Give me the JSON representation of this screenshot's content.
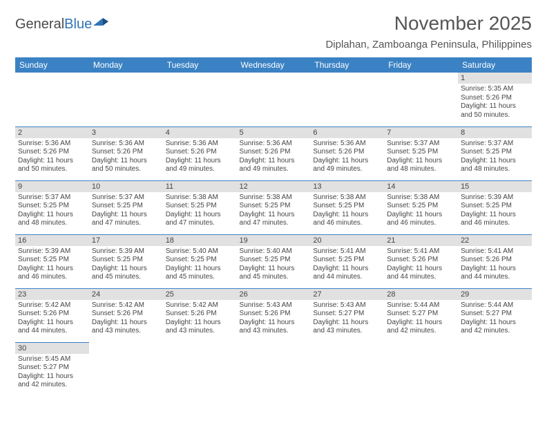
{
  "logo": {
    "text_dark": "General",
    "text_blue": "Blue"
  },
  "title": "November 2025",
  "location": "Diplahan, Zamboanga Peninsula, Philippines",
  "colors": {
    "header_bg": "#3b82c4",
    "header_text": "#ffffff",
    "daynum_bg": "#e1e1e1",
    "row_divider": "#3b82c4",
    "text": "#444444",
    "title_text": "#555555",
    "page_bg": "#ffffff"
  },
  "weekdays": [
    "Sunday",
    "Monday",
    "Tuesday",
    "Wednesday",
    "Thursday",
    "Friday",
    "Saturday"
  ],
  "cells": [
    {
      "n": "",
      "sr": "",
      "ss": "",
      "dl": ""
    },
    {
      "n": "",
      "sr": "",
      "ss": "",
      "dl": ""
    },
    {
      "n": "",
      "sr": "",
      "ss": "",
      "dl": ""
    },
    {
      "n": "",
      "sr": "",
      "ss": "",
      "dl": ""
    },
    {
      "n": "",
      "sr": "",
      "ss": "",
      "dl": ""
    },
    {
      "n": "",
      "sr": "",
      "ss": "",
      "dl": ""
    },
    {
      "n": "1",
      "sr": "Sunrise: 5:35 AM",
      "ss": "Sunset: 5:26 PM",
      "dl": "Daylight: 11 hours and 50 minutes."
    },
    {
      "n": "2",
      "sr": "Sunrise: 5:36 AM",
      "ss": "Sunset: 5:26 PM",
      "dl": "Daylight: 11 hours and 50 minutes."
    },
    {
      "n": "3",
      "sr": "Sunrise: 5:36 AM",
      "ss": "Sunset: 5:26 PM",
      "dl": "Daylight: 11 hours and 50 minutes."
    },
    {
      "n": "4",
      "sr": "Sunrise: 5:36 AM",
      "ss": "Sunset: 5:26 PM",
      "dl": "Daylight: 11 hours and 49 minutes."
    },
    {
      "n": "5",
      "sr": "Sunrise: 5:36 AM",
      "ss": "Sunset: 5:26 PM",
      "dl": "Daylight: 11 hours and 49 minutes."
    },
    {
      "n": "6",
      "sr": "Sunrise: 5:36 AM",
      "ss": "Sunset: 5:26 PM",
      "dl": "Daylight: 11 hours and 49 minutes."
    },
    {
      "n": "7",
      "sr": "Sunrise: 5:37 AM",
      "ss": "Sunset: 5:25 PM",
      "dl": "Daylight: 11 hours and 48 minutes."
    },
    {
      "n": "8",
      "sr": "Sunrise: 5:37 AM",
      "ss": "Sunset: 5:25 PM",
      "dl": "Daylight: 11 hours and 48 minutes."
    },
    {
      "n": "9",
      "sr": "Sunrise: 5:37 AM",
      "ss": "Sunset: 5:25 PM",
      "dl": "Daylight: 11 hours and 48 minutes."
    },
    {
      "n": "10",
      "sr": "Sunrise: 5:37 AM",
      "ss": "Sunset: 5:25 PM",
      "dl": "Daylight: 11 hours and 47 minutes."
    },
    {
      "n": "11",
      "sr": "Sunrise: 5:38 AM",
      "ss": "Sunset: 5:25 PM",
      "dl": "Daylight: 11 hours and 47 minutes."
    },
    {
      "n": "12",
      "sr": "Sunrise: 5:38 AM",
      "ss": "Sunset: 5:25 PM",
      "dl": "Daylight: 11 hours and 47 minutes."
    },
    {
      "n": "13",
      "sr": "Sunrise: 5:38 AM",
      "ss": "Sunset: 5:25 PM",
      "dl": "Daylight: 11 hours and 46 minutes."
    },
    {
      "n": "14",
      "sr": "Sunrise: 5:38 AM",
      "ss": "Sunset: 5:25 PM",
      "dl": "Daylight: 11 hours and 46 minutes."
    },
    {
      "n": "15",
      "sr": "Sunrise: 5:39 AM",
      "ss": "Sunset: 5:25 PM",
      "dl": "Daylight: 11 hours and 46 minutes."
    },
    {
      "n": "16",
      "sr": "Sunrise: 5:39 AM",
      "ss": "Sunset: 5:25 PM",
      "dl": "Daylight: 11 hours and 46 minutes."
    },
    {
      "n": "17",
      "sr": "Sunrise: 5:39 AM",
      "ss": "Sunset: 5:25 PM",
      "dl": "Daylight: 11 hours and 45 minutes."
    },
    {
      "n": "18",
      "sr": "Sunrise: 5:40 AM",
      "ss": "Sunset: 5:25 PM",
      "dl": "Daylight: 11 hours and 45 minutes."
    },
    {
      "n": "19",
      "sr": "Sunrise: 5:40 AM",
      "ss": "Sunset: 5:25 PM",
      "dl": "Daylight: 11 hours and 45 minutes."
    },
    {
      "n": "20",
      "sr": "Sunrise: 5:41 AM",
      "ss": "Sunset: 5:25 PM",
      "dl": "Daylight: 11 hours and 44 minutes."
    },
    {
      "n": "21",
      "sr": "Sunrise: 5:41 AM",
      "ss": "Sunset: 5:26 PM",
      "dl": "Daylight: 11 hours and 44 minutes."
    },
    {
      "n": "22",
      "sr": "Sunrise: 5:41 AM",
      "ss": "Sunset: 5:26 PM",
      "dl": "Daylight: 11 hours and 44 minutes."
    },
    {
      "n": "23",
      "sr": "Sunrise: 5:42 AM",
      "ss": "Sunset: 5:26 PM",
      "dl": "Daylight: 11 hours and 44 minutes."
    },
    {
      "n": "24",
      "sr": "Sunrise: 5:42 AM",
      "ss": "Sunset: 5:26 PM",
      "dl": "Daylight: 11 hours and 43 minutes."
    },
    {
      "n": "25",
      "sr": "Sunrise: 5:42 AM",
      "ss": "Sunset: 5:26 PM",
      "dl": "Daylight: 11 hours and 43 minutes."
    },
    {
      "n": "26",
      "sr": "Sunrise: 5:43 AM",
      "ss": "Sunset: 5:26 PM",
      "dl": "Daylight: 11 hours and 43 minutes."
    },
    {
      "n": "27",
      "sr": "Sunrise: 5:43 AM",
      "ss": "Sunset: 5:27 PM",
      "dl": "Daylight: 11 hours and 43 minutes."
    },
    {
      "n": "28",
      "sr": "Sunrise: 5:44 AM",
      "ss": "Sunset: 5:27 PM",
      "dl": "Daylight: 11 hours and 42 minutes."
    },
    {
      "n": "29",
      "sr": "Sunrise: 5:44 AM",
      "ss": "Sunset: 5:27 PM",
      "dl": "Daylight: 11 hours and 42 minutes."
    },
    {
      "n": "30",
      "sr": "Sunrise: 5:45 AM",
      "ss": "Sunset: 5:27 PM",
      "dl": "Daylight: 11 hours and 42 minutes."
    },
    {
      "n": "",
      "sr": "",
      "ss": "",
      "dl": ""
    },
    {
      "n": "",
      "sr": "",
      "ss": "",
      "dl": ""
    },
    {
      "n": "",
      "sr": "",
      "ss": "",
      "dl": ""
    },
    {
      "n": "",
      "sr": "",
      "ss": "",
      "dl": ""
    },
    {
      "n": "",
      "sr": "",
      "ss": "",
      "dl": ""
    },
    {
      "n": "",
      "sr": "",
      "ss": "",
      "dl": ""
    }
  ]
}
